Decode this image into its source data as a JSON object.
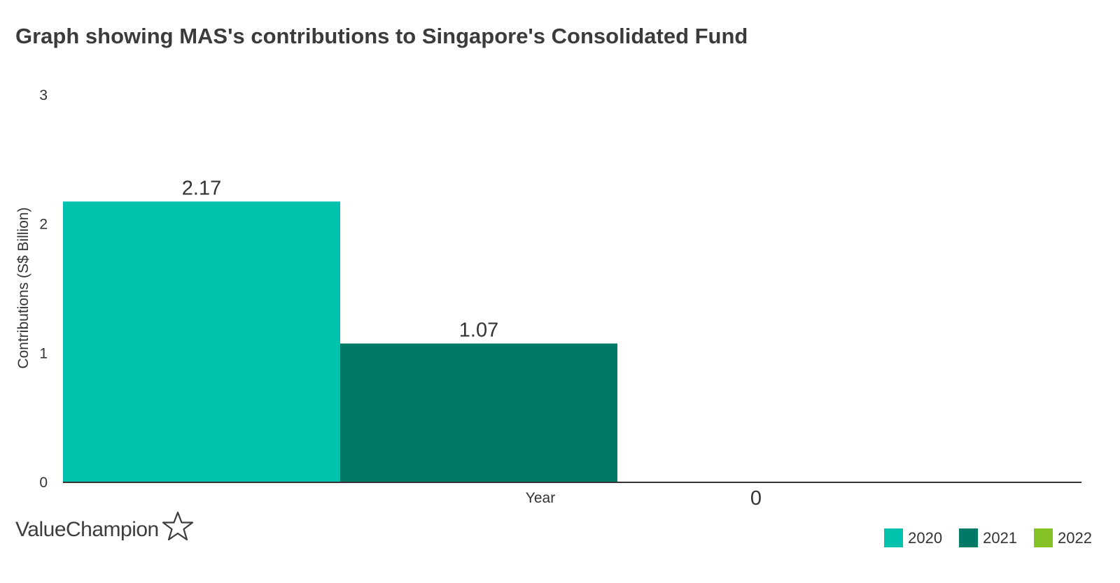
{
  "chart_data": {
    "type": "bar",
    "title": "Graph showing MAS's contributions to Singapore's Consolidated Fund",
    "xlabel": "Year",
    "ylabel": "Contributions (S$ Billion)",
    "ylim": [
      0,
      3
    ],
    "yticks": [
      "0",
      "1",
      "2",
      "3"
    ],
    "grid": false,
    "legend_position": "bottom-right",
    "series": [
      {
        "name": "2020",
        "values": [
          2.17
        ],
        "label": "2.17",
        "color": "#00c2ad"
      },
      {
        "name": "2021",
        "values": [
          1.07
        ],
        "label": "1.07",
        "color": "#007a66"
      },
      {
        "name": "2022",
        "values": [
          0
        ],
        "label": "0",
        "color": "#84c225"
      }
    ]
  },
  "brand": {
    "name": "ValueChampion",
    "icon": "star-outline-icon"
  }
}
